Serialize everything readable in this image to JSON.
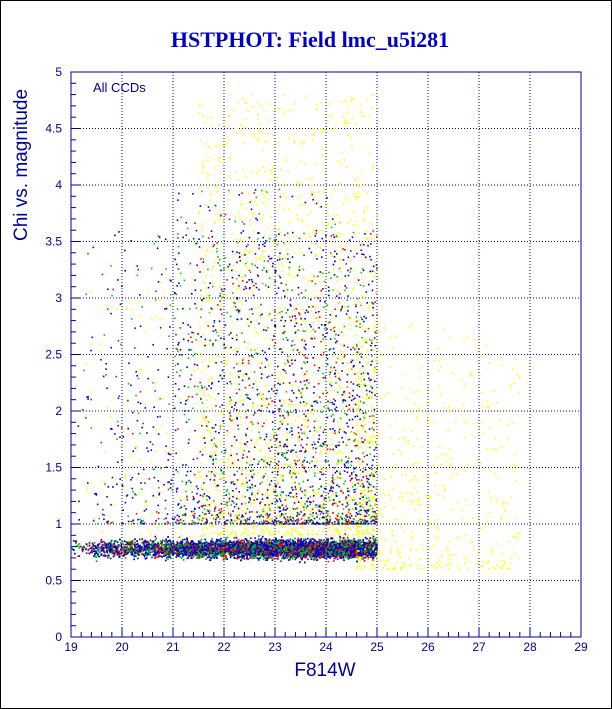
{
  "chart_data": {
    "type": "scatter",
    "title": "HSTPHOT: Field lmc_u5i281",
    "xlabel": "F814W",
    "ylabel": "Chi vs. magnitude",
    "annotation": "All CCDs",
    "xlim": [
      19,
      29
    ],
    "ylim": [
      0,
      5
    ],
    "x_ticks": [
      "19",
      "20",
      "21",
      "22",
      "23",
      "24",
      "25",
      "26",
      "27",
      "28",
      "29"
    ],
    "y_ticks": [
      "0",
      "0.5",
      "1",
      "1.5",
      "2",
      "2.5",
      "3",
      "3.5",
      "4",
      "4.5",
      "5"
    ],
    "grid": true,
    "colors": {
      "axis": "#0000a0",
      "title": "#0000cc",
      "grid": "#0000a0",
      "series": [
        "#0000cc",
        "#00cc00",
        "#ff0000",
        "#ffff00"
      ]
    },
    "series": [
      {
        "color": "#0000cc",
        "x_range": [
          19,
          25
        ],
        "y_core": [
          0.55,
          1.0
        ],
        "dense": true
      },
      {
        "color": "#00cc00",
        "x_range": [
          19,
          25
        ],
        "y_core": [
          0.55,
          1.0
        ],
        "dense": true
      },
      {
        "color": "#ff0000",
        "x_range": [
          19,
          25
        ],
        "y_core": [
          0.55,
          1.0
        ],
        "dense": true
      },
      {
        "color": "#ffff00",
        "x_range": [
          19,
          28
        ],
        "y_core": [
          0.55,
          1.2
        ],
        "dense": false
      }
    ]
  }
}
